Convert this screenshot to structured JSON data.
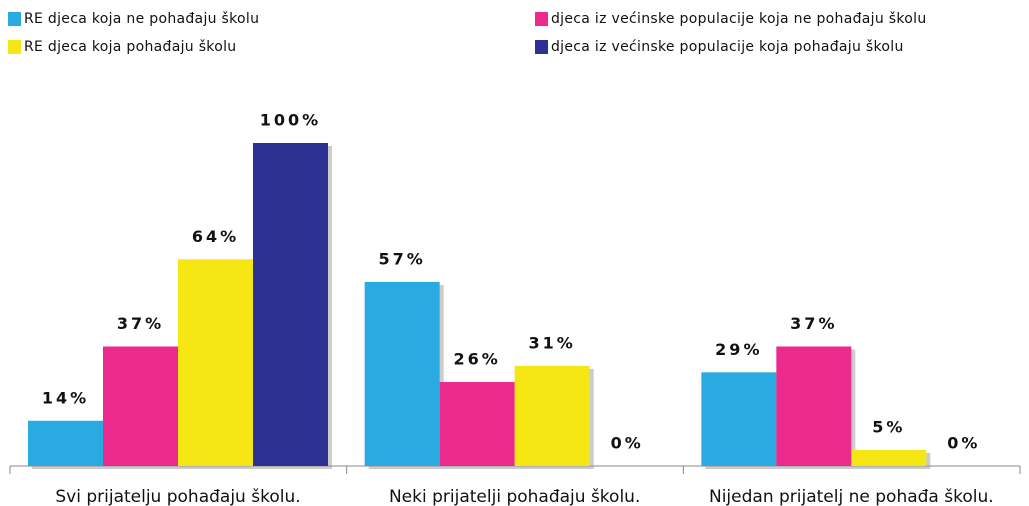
{
  "chart_data": {
    "type": "bar",
    "categories": [
      "Svi prijatelju pohađaju školu.",
      "Neki prijatelji pohađaju školu.",
      "Nijedan prijatelj ne pohađa školu."
    ],
    "series": [
      {
        "name": "RE djeca koja ne pohađaju školu",
        "color": "#29abe2",
        "values": [
          14,
          57,
          29
        ],
        "value_labels": [
          "14%",
          "57%",
          "29%"
        ]
      },
      {
        "name": "djeca iz većinske populacije koja ne pohađaju školu",
        "color": "#ec2a8e",
        "values": [
          37,
          26,
          37
        ],
        "value_labels": [
          "37%",
          "26%",
          "37%"
        ]
      },
      {
        "name": "RE djeca koja pohađaju školu",
        "color": "#f5e614",
        "values": [
          64,
          31,
          5
        ],
        "value_labels": [
          "64%",
          "31%",
          "5%"
        ]
      },
      {
        "name": "djeca iz većinske populacije koja pohađaju školu",
        "color": "#2e3192",
        "values": [
          100,
          0,
          0
        ],
        "value_labels": [
          "100%",
          "0%",
          "0%"
        ]
      }
    ],
    "ylim": [
      0,
      100
    ]
  }
}
